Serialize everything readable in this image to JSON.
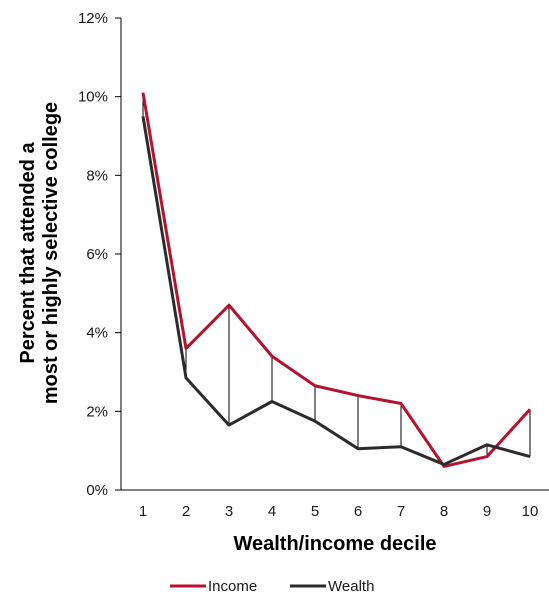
{
  "chart_data": {
    "type": "line",
    "x": [
      1,
      2,
      3,
      4,
      5,
      6,
      7,
      8,
      9,
      10
    ],
    "x_tick_labels": [
      "1",
      "2",
      "3",
      "4",
      "5",
      "6",
      "7",
      "8",
      "9",
      "10"
    ],
    "y_tick_labels": [
      "0%",
      "2%",
      "4%",
      "6%",
      "8%",
      "10%",
      "12%"
    ],
    "ylim": [
      0,
      12
    ],
    "xlabel": "Wealth/income decile",
    "ylabel_lines": [
      "Percent that attended a",
      "most or highly selective college"
    ],
    "series": [
      {
        "name": "Income",
        "color": "#b5122e",
        "values": [
          10.1,
          3.6,
          4.7,
          3.4,
          2.65,
          2.4,
          2.2,
          0.6,
          0.85,
          2.05
        ]
      },
      {
        "name": "Wealth",
        "color": "#2b2b2b",
        "values": [
          9.5,
          2.85,
          1.65,
          2.25,
          1.75,
          1.05,
          1.1,
          0.65,
          1.15,
          0.85
        ]
      }
    ],
    "difference_lines": true,
    "grid": false,
    "legend_position": "bottom-center"
  }
}
